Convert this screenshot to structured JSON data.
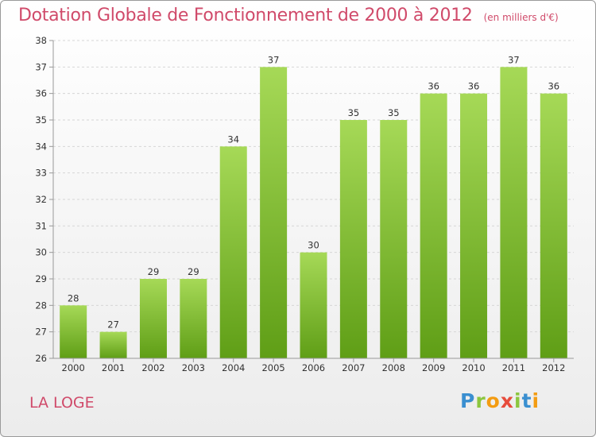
{
  "header": {
    "title": "Dotation Globale de Fonctionnement de 2000 à 2012",
    "unit": "(en milliers d'€)"
  },
  "footer": {
    "commune": "LA LOGE",
    "brand": [
      "P",
      "r",
      "o",
      "x",
      "i",
      "t",
      "i"
    ],
    "brand_colors": [
      "#3a8fd0",
      "#8cc63f",
      "#f39c12",
      "#e74c3c",
      "#8cc63f",
      "#3a8fd0",
      "#f39c12"
    ]
  },
  "colors": {
    "bar_top": "#a6d957",
    "bar_bottom": "#5f9e16",
    "axis": "#999999",
    "grid": "#d6d6d6"
  },
  "chart_data": {
    "type": "bar",
    "categories": [
      "2000",
      "2001",
      "2002",
      "2003",
      "2004",
      "2005",
      "2006",
      "2007",
      "2008",
      "2009",
      "2010",
      "2011",
      "2012"
    ],
    "values": [
      28,
      27,
      29,
      29,
      34,
      37,
      30,
      35,
      35,
      36,
      36,
      37,
      36
    ],
    "ylim": [
      26,
      38
    ],
    "yticks": [
      26,
      27,
      28,
      29,
      30,
      31,
      32,
      33,
      34,
      35,
      36,
      37,
      38
    ],
    "grid": "horizontal dashed",
    "legend": "none"
  }
}
